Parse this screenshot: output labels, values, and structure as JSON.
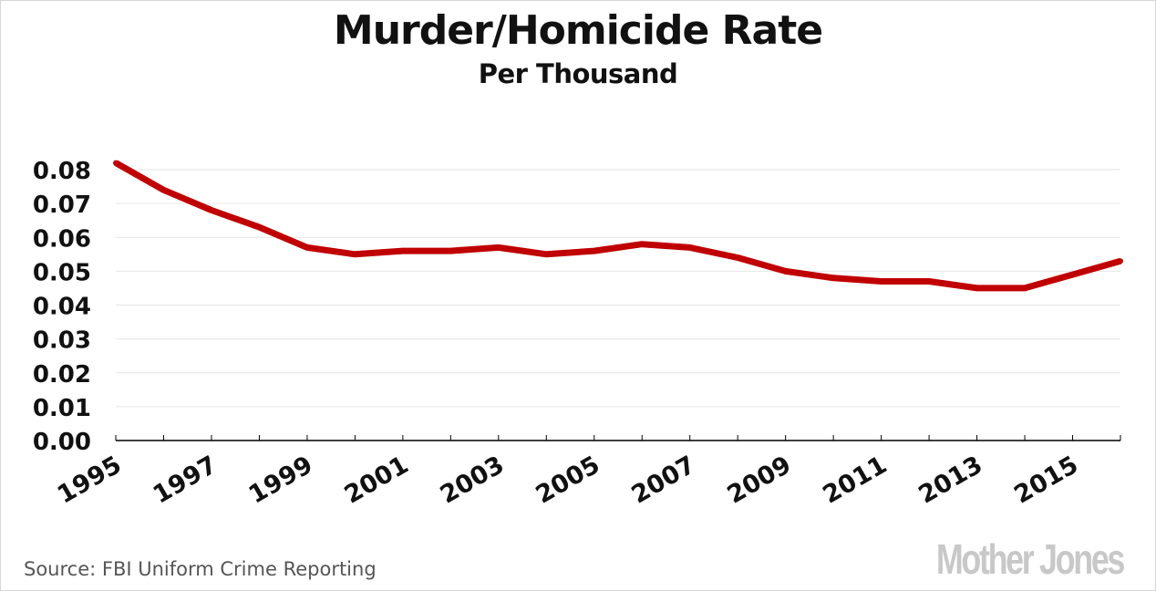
{
  "chart_data": {
    "type": "line",
    "title": "Murder/Homicide Rate",
    "subtitle": "Per Thousand",
    "x": [
      1995,
      1996,
      1997,
      1998,
      1999,
      2000,
      2001,
      2002,
      2003,
      2004,
      2005,
      2006,
      2007,
      2008,
      2009,
      2010,
      2011,
      2012,
      2013,
      2014,
      2015,
      2016
    ],
    "series": [
      {
        "values": [
          0.082,
          0.074,
          0.068,
          0.063,
          0.057,
          0.055,
          0.056,
          0.056,
          0.057,
          0.055,
          0.056,
          0.058,
          0.057,
          0.054,
          0.05,
          0.048,
          0.047,
          0.047,
          0.045,
          0.045,
          0.049,
          0.053
        ],
        "color": "#c00000"
      }
    ],
    "xticks": [
      "1995",
      "1997",
      "1999",
      "2001",
      "2003",
      "2005",
      "2007",
      "2009",
      "2011",
      "2013",
      "2015"
    ],
    "yticks": [
      "0.00",
      "0.01",
      "0.02",
      "0.03",
      "0.04",
      "0.05",
      "0.06",
      "0.07",
      "0.08"
    ],
    "ylim": [
      0,
      0.08
    ],
    "xlim": [
      1995,
      2016
    ],
    "grid": "horizontal",
    "legend": "none"
  },
  "footer": {
    "source": "Source: FBI Uniform Crime Reporting",
    "logo": "Mother Jones"
  },
  "colors": {
    "line": "#c00000",
    "grid": "#e6e6e6",
    "axis": "#000000",
    "logo": "#c8c8c8"
  }
}
